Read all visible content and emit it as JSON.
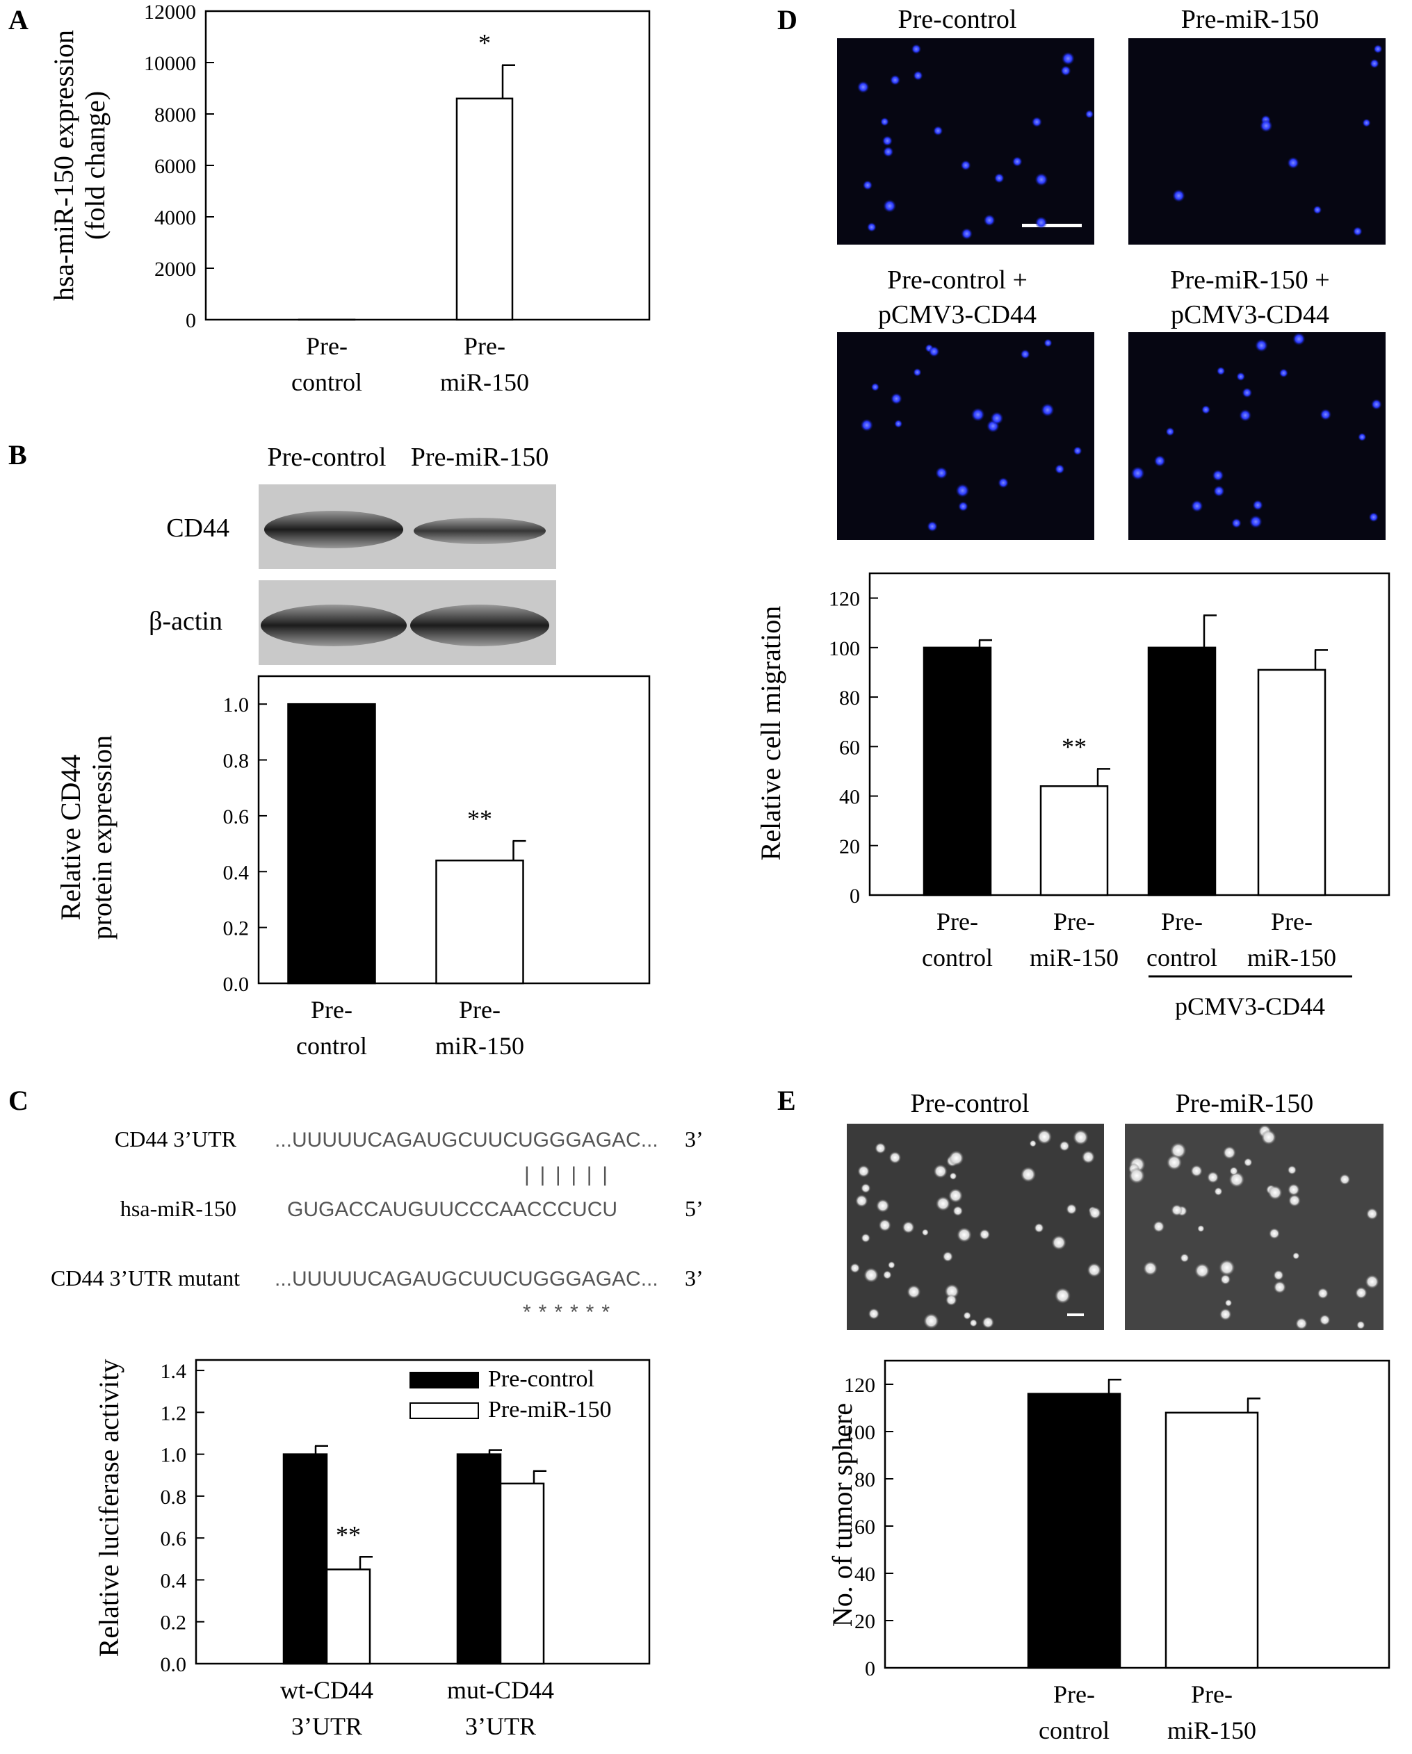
{
  "panels": {
    "A": {
      "letter": "A"
    },
    "B": {
      "letter": "B",
      "blot_headers": [
        "Pre-control",
        "Pre-miR-150"
      ],
      "blot_rows": [
        "CD44",
        "β-actin"
      ]
    },
    "C": {
      "letter": "C",
      "alignment": [
        {
          "label": "CD44 3’UTR",
          "seq": "...UUUUUCAGAUGCUUCUGGGAGAC...",
          "end": "3’"
        },
        {
          "label": "",
          "seq": "||||||",
          "end": ""
        },
        {
          "label": "hsa-miR-150",
          "seq": "GUGACCAUGUUCCCAACCCUCU",
          "end": "5’"
        },
        {
          "label": "CD44 3’UTR mutant",
          "seq": "...UUUUUCAGAUGCUUCUGGGAGAC...",
          "end": "3’"
        },
        {
          "label": "",
          "seq": "******",
          "end": ""
        }
      ]
    },
    "D": {
      "letter": "D",
      "image_labels": [
        "Pre-control",
        "Pre-miR-150",
        "Pre-control +",
        "pCMV3-CD44",
        "Pre-miR-150 +",
        "pCMV3-CD44"
      ],
      "group_label": "pCMV3-CD44"
    },
    "E": {
      "letter": "E",
      "image_labels": [
        "Pre-control",
        "Pre-miR-150"
      ]
    }
  },
  "colors": {
    "black_bar": "#000000",
    "white_bar": "#ffffff",
    "blue_nuclei": "#1a2cff",
    "dark_bg": "#060612"
  },
  "chart_data": [
    {
      "id": "A",
      "type": "bar",
      "categories": [
        [
          "Pre-",
          "control"
        ],
        [
          "Pre-",
          "miR-150"
        ]
      ],
      "values": [
        1,
        8600
      ],
      "errors": [
        0,
        1300
      ],
      "fills": [
        "white",
        "white"
      ],
      "annotations": [
        "",
        "*"
      ],
      "ylabel": [
        "hsa-miR-150 expression",
        "(fold change)"
      ],
      "ylim": [
        0,
        12000
      ],
      "yticks": [
        "0",
        "2000",
        "4000",
        "6000",
        "8000",
        "10000",
        "12000"
      ]
    },
    {
      "id": "B",
      "type": "bar",
      "categories": [
        [
          "Pre-",
          "control"
        ],
        [
          "Pre-",
          "miR-150"
        ]
      ],
      "values": [
        1.0,
        0.44
      ],
      "errors": [
        0,
        0.07
      ],
      "fills": [
        "black",
        "white"
      ],
      "annotations": [
        "",
        "**"
      ],
      "ylabel": [
        "Relative CD44",
        "protein expression"
      ],
      "ylim": [
        0,
        1.1
      ],
      "yticks": [
        "0.0",
        "0.2",
        "0.4",
        "0.6",
        "0.8",
        "1.0"
      ]
    },
    {
      "id": "C",
      "type": "bar",
      "categories": [
        [
          "wt-CD44",
          "3’UTR"
        ],
        [
          "mut-CD44",
          "3’UTR"
        ]
      ],
      "series": [
        {
          "name": "Pre-control",
          "values": [
            1.0,
            1.0
          ],
          "errors": [
            0.04,
            0.02
          ]
        },
        {
          "name": "Pre-miR-150",
          "values": [
            0.45,
            0.86
          ],
          "errors": [
            0.06,
            0.06
          ]
        }
      ],
      "annotations": [
        "",
        "**",
        "",
        ""
      ],
      "ylabel": [
        "Relative luciferase activity"
      ],
      "ylim": [
        0,
        1.45
      ],
      "yticks": [
        "0.0",
        "0.2",
        "0.4",
        "0.6",
        "0.8",
        "1.0",
        "1.2",
        "1.4"
      ],
      "legend": "top-right"
    },
    {
      "id": "D",
      "type": "bar",
      "categories": [
        [
          "Pre-",
          "control"
        ],
        [
          "Pre-",
          "miR-150"
        ],
        [
          "Pre-",
          "control"
        ],
        [
          "Pre-",
          "miR-150"
        ]
      ],
      "values": [
        100,
        44,
        100,
        91
      ],
      "errors": [
        3,
        7,
        13,
        8
      ],
      "fills": [
        "black",
        "white",
        "black",
        "white"
      ],
      "annotations": [
        "",
        "**",
        "",
        ""
      ],
      "ylabel": [
        "Relative cell migration"
      ],
      "ylim": [
        0,
        130
      ],
      "yticks": [
        "0",
        "20",
        "40",
        "60",
        "80",
        "100",
        "120"
      ]
    },
    {
      "id": "E",
      "type": "bar",
      "categories": [
        [
          "Pre-",
          "control"
        ],
        [
          "Pre-",
          "miR-150"
        ]
      ],
      "values": [
        116,
        108
      ],
      "errors": [
        6,
        6
      ],
      "fills": [
        "black",
        "white"
      ],
      "annotations": [
        "",
        ""
      ],
      "ylabel": [
        "No. of tumor sphere"
      ],
      "ylim": [
        0,
        130
      ],
      "yticks": [
        "0",
        "20",
        "40",
        "60",
        "80",
        "100",
        "120"
      ]
    }
  ]
}
